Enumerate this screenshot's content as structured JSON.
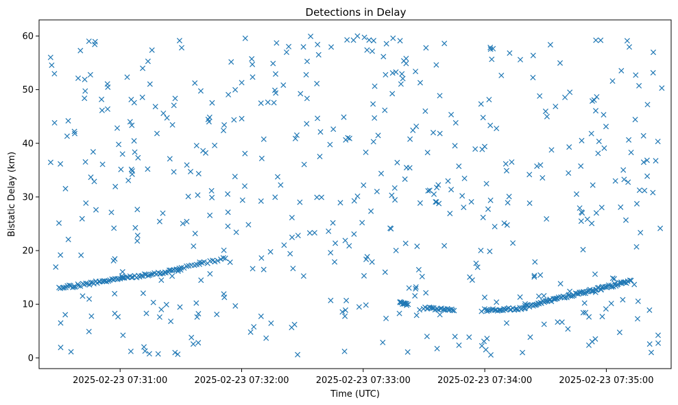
{
  "chart_data": {
    "type": "scatter",
    "title": "Detections in Delay",
    "xlabel": "Time (UTC)",
    "ylabel": "Bistatic Delay (km)",
    "marker": "x",
    "color": "#1f77b4",
    "grid": false,
    "x_start": "2025-02-23 07:30:25",
    "x_end": "2025-02-23 07:35:28",
    "xlim": [
      "2025-02-23 07:30:20",
      "2025-02-23 07:35:32"
    ],
    "ylim": [
      -2,
      63
    ],
    "x_ticks": [
      {
        "value": "2025-02-23 07:31:00",
        "label": "2025-02-23 07:31:00"
      },
      {
        "value": "2025-02-23 07:32:00",
        "label": "2025-02-23 07:32:00"
      },
      {
        "value": "2025-02-23 07:33:00",
        "label": "2025-02-23 07:33:00"
      },
      {
        "value": "2025-02-23 07:34:00",
        "label": "2025-02-23 07:34:00"
      },
      {
        "value": "2025-02-23 07:35:00",
        "label": "2025-02-23 07:35:00"
      }
    ],
    "y_ticks": [
      0,
      10,
      20,
      30,
      40,
      50,
      60
    ],
    "tracks": [
      {
        "x_start": "2025-02-23 07:30:30",
        "x_end": "2025-02-23 07:31:30",
        "y_start": 13.0,
        "y_end": 16.5,
        "count": 75
      },
      {
        "x_start": "2025-02-23 07:31:30",
        "x_end": "2025-02-23 07:31:52",
        "y_start": 16.8,
        "y_end": 18.5,
        "count": 18
      },
      {
        "x_start": "2025-02-23 07:33:18",
        "x_end": "2025-02-23 07:33:22",
        "y_start": 10.3,
        "y_end": 10.0,
        "count": 12
      },
      {
        "x_start": "2025-02-23 07:33:30",
        "x_end": "2025-02-23 07:33:45",
        "y_start": 9.4,
        "y_end": 8.9,
        "count": 22
      },
      {
        "x_start": "2025-02-23 07:34:00",
        "x_end": "2025-02-23 07:34:20",
        "y_start": 8.9,
        "y_end": 9.2,
        "count": 30
      },
      {
        "x_start": "2025-02-23 07:34:20",
        "x_end": "2025-02-23 07:35:12",
        "y_start": 9.6,
        "y_end": 14.3,
        "count": 85
      }
    ],
    "clutter_count": 520,
    "clutter_y_range": [
      0.5,
      60
    ]
  }
}
